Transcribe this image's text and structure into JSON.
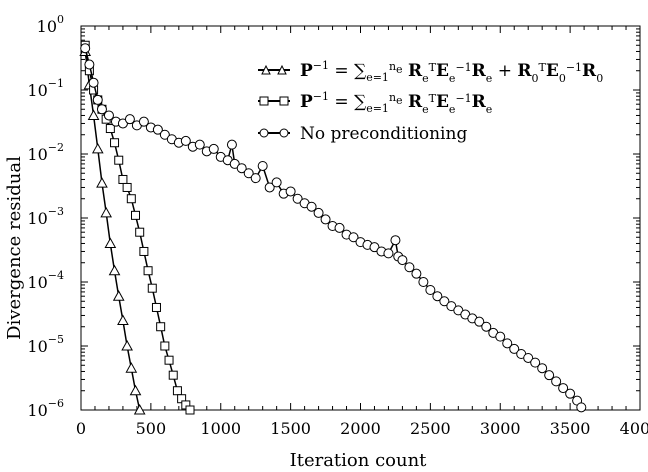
{
  "chart_data": {
    "type": "line",
    "xlabel": "Iteration count",
    "ylabel": "Divergence residual",
    "xlim": [
      0,
      4000
    ],
    "ylim": [
      1e-06,
      1
    ],
    "yscale": "log",
    "grid": false,
    "legend_position": "top-right",
    "x_ticks": [
      "0",
      "500",
      "1000",
      "1500",
      "2000",
      "2500",
      "3000",
      "3500",
      "4000"
    ],
    "y_ticks": [
      {
        "base": "10",
        "exp": "0"
      },
      {
        "base": "10",
        "exp": "−1"
      },
      {
        "base": "10",
        "exp": "−2"
      },
      {
        "base": "10",
        "exp": "−3"
      },
      {
        "base": "10",
        "exp": "−4"
      },
      {
        "base": "10",
        "exp": "−5"
      },
      {
        "base": "10",
        "exp": "−6"
      }
    ],
    "legend": [
      {
        "marker": "triangle",
        "formula": "P⁻¹ = Σₑ₌₁ⁿᵉ Rₑᵀ Eₑ⁻¹ Rₑ + R₀ᵀ E₀⁻¹ R₀"
      },
      {
        "marker": "square",
        "formula": "P⁻¹ = Σₑ₌₁ⁿᵉ Rₑᵀ Eₑ⁻¹ Rₑ"
      },
      {
        "marker": "circle",
        "text": "No preconditioning"
      }
    ],
    "series": [
      {
        "marker": "triangle",
        "x": [
          30,
          60,
          90,
          120,
          150,
          180,
          210,
          240,
          270,
          300,
          330,
          360,
          390,
          420
        ],
        "y": [
          0.4,
          0.12,
          0.04,
          0.012,
          0.0035,
          0.0012,
          0.0004,
          0.00015,
          6e-05,
          2.5e-05,
          1e-05,
          4.5e-06,
          2e-06,
          1e-06
        ]
      },
      {
        "marker": "square",
        "x": [
          30,
          60,
          90,
          120,
          150,
          180,
          210,
          240,
          270,
          300,
          330,
          360,
          390,
          420,
          450,
          480,
          510,
          540,
          570,
          600,
          630,
          660,
          690,
          720,
          750,
          780
        ],
        "y": [
          0.5,
          0.2,
          0.1,
          0.07,
          0.05,
          0.035,
          0.025,
          0.015,
          0.008,
          0.004,
          0.003,
          0.002,
          0.0011,
          0.0006,
          0.0003,
          0.00015,
          8e-05,
          4e-05,
          2e-05,
          1e-05,
          6e-06,
          3.5e-06,
          2e-06,
          1.5e-06,
          1.2e-06,
          1e-06
        ]
      },
      {
        "marker": "circle",
        "x": [
          30,
          60,
          90,
          120,
          150,
          200,
          250,
          300,
          350,
          400,
          450,
          500,
          550,
          600,
          650,
          700,
          750,
          800,
          850,
          900,
          950,
          1000,
          1050,
          1080,
          1100,
          1150,
          1200,
          1250,
          1300,
          1350,
          1400,
          1450,
          1500,
          1550,
          1600,
          1650,
          1700,
          1750,
          1800,
          1850,
          1900,
          1950,
          2000,
          2050,
          2100,
          2150,
          2200,
          2250,
          2270,
          2300,
          2350,
          2400,
          2450,
          2500,
          2550,
          2600,
          2650,
          2700,
          2750,
          2800,
          2850,
          2900,
          2950,
          3000,
          3050,
          3100,
          3150,
          3200,
          3250,
          3300,
          3350,
          3400,
          3450,
          3500,
          3550,
          3580
        ],
        "y": [
          0.45,
          0.25,
          0.13,
          0.07,
          0.05,
          0.04,
          0.032,
          0.03,
          0.035,
          0.028,
          0.032,
          0.026,
          0.024,
          0.02,
          0.017,
          0.015,
          0.016,
          0.013,
          0.014,
          0.011,
          0.012,
          0.009,
          0.008,
          0.014,
          0.007,
          0.006,
          0.005,
          0.0042,
          0.0065,
          0.003,
          0.0036,
          0.0024,
          0.0026,
          0.002,
          0.0017,
          0.0015,
          0.0012,
          0.00095,
          0.00075,
          0.0007,
          0.00055,
          0.0005,
          0.00042,
          0.00038,
          0.00035,
          0.0003,
          0.00028,
          0.00045,
          0.00025,
          0.00022,
          0.00017,
          0.000135,
          0.0001,
          7.5e-05,
          6e-05,
          5e-05,
          4.2e-05,
          3.6e-05,
          3.1e-05,
          2.7e-05,
          2.4e-05,
          2e-05,
          1.6e-05,
          1.4e-05,
          1.1e-05,
          9e-06,
          7.5e-06,
          6.5e-06,
          5.5e-06,
          4.5e-06,
          3.5e-06,
          2.8e-06,
          2.2e-06,
          1.8e-06,
          1.4e-06,
          1.1e-06
        ]
      }
    ]
  }
}
